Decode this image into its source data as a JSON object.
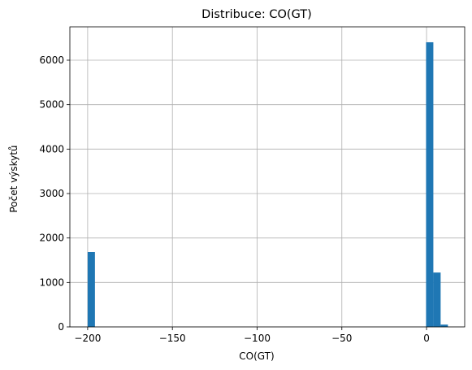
{
  "chart_data": {
    "type": "bar",
    "title": "Distribuce: CO(GT)",
    "xlabel": "CO(GT)",
    "ylabel": "Počet výskytů",
    "xlim": [
      -210.5,
      22.5
    ],
    "ylim": [
      0,
      6750
    ],
    "xticks": [
      -200,
      -150,
      -100,
      -50,
      0
    ],
    "xtick_labels": [
      "−200",
      "−150",
      "−100",
      "−50",
      "0"
    ],
    "yticks": [
      0,
      1000,
      2000,
      3000,
      4000,
      5000,
      6000
    ],
    "ytick_labels": [
      "0",
      "1000",
      "2000",
      "3000",
      "4000",
      "5000",
      "6000"
    ],
    "grid": true,
    "color": "#1f77b4",
    "bins": [
      {
        "x0": -200.0,
        "x1": -195.7,
        "count": 1683
      },
      {
        "x0": -0.3,
        "x1": 4.0,
        "count": 6403
      },
      {
        "x0": 4.0,
        "x1": 8.3,
        "count": 1223
      },
      {
        "x0": 8.3,
        "x1": 12.6,
        "count": 52
      }
    ]
  }
}
